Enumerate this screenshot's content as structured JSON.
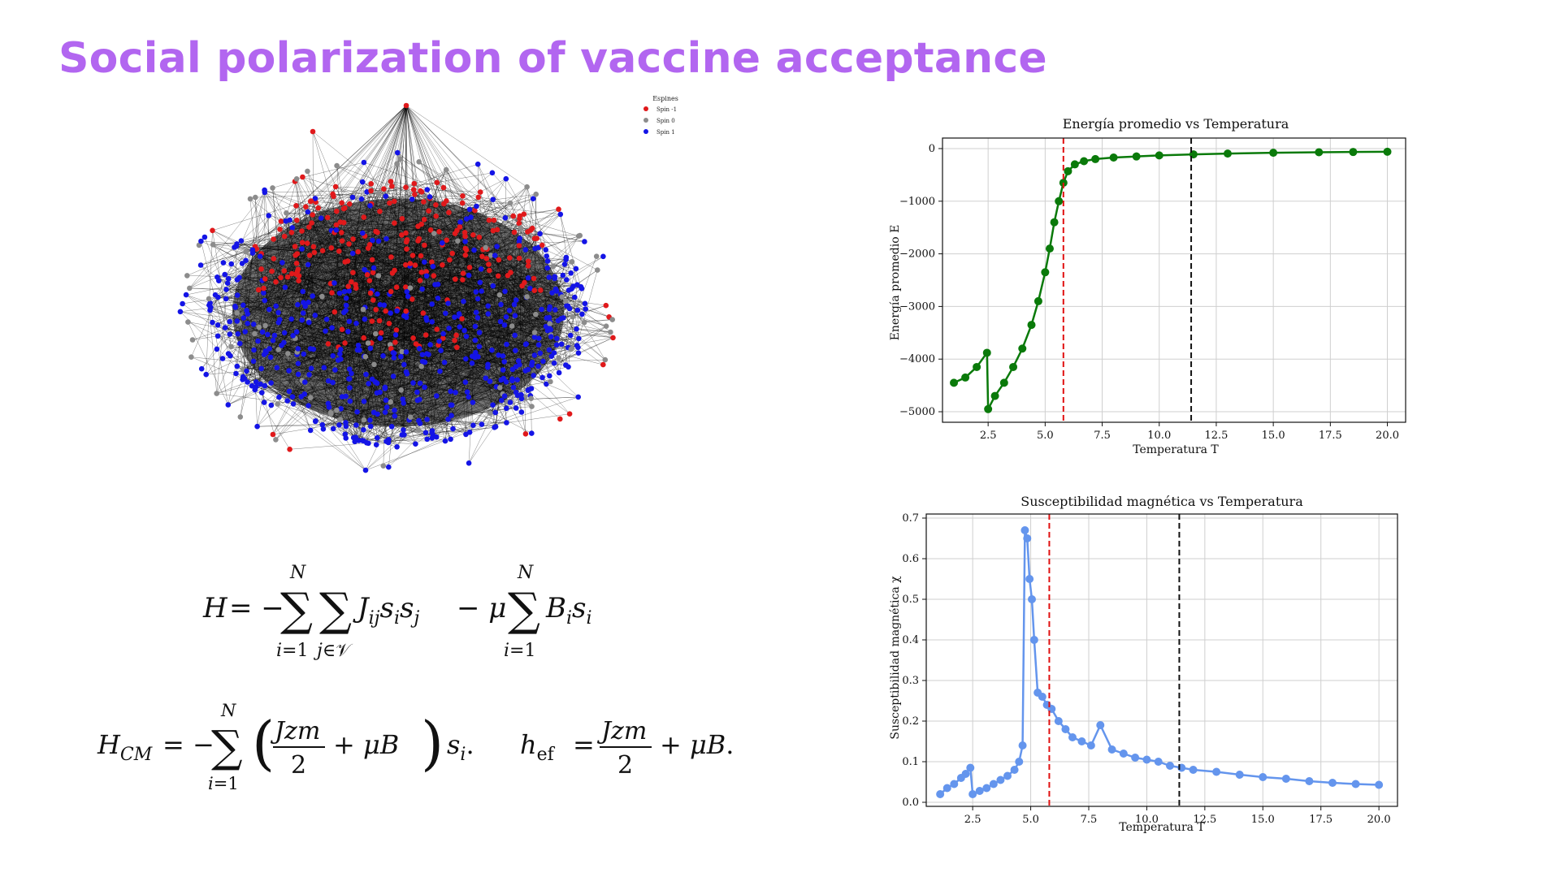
{
  "slide": {
    "title": "Social polarization of vaccine acceptance"
  },
  "network": {
    "legend": {
      "title": "Espines",
      "entries": [
        {
          "label": "Spin -1",
          "color": "#e0191b"
        },
        {
          "label": "Spin 0",
          "color": "#8c8c8c"
        },
        {
          "label": "Spin 1",
          "color": "#1414e6"
        }
      ]
    }
  },
  "chart_data": [
    {
      "type": "scatter",
      "title": "Energía promedio vs Temperatura",
      "xlabel": "Temperatura T",
      "ylabel": "Energía promedio E",
      "xlim": [
        0.5,
        20.8
      ],
      "ylim": [
        -5200,
        200
      ],
      "xticks": [
        2.5,
        5.0,
        7.5,
        10.0,
        12.5,
        15.0,
        17.5,
        20.0
      ],
      "xtick_labels": [
        "2.5",
        "5.0",
        "7.5",
        "10.0",
        "12.5",
        "15.0",
        "17.5",
        "20.0"
      ],
      "yticks": [
        0,
        -1000,
        -2000,
        -3000,
        -4000,
        -5000
      ],
      "ytick_labels": [
        "0",
        "−1000",
        "−2000",
        "−3000",
        "−4000",
        "−5000"
      ],
      "grid": true,
      "series": [
        {
          "color": "#0a7a0a",
          "x": [
            1.0,
            1.5,
            2.0,
            2.45,
            2.5,
            2.8,
            3.2,
            3.6,
            4.0,
            4.4,
            4.7,
            5.0,
            5.2,
            5.4,
            5.6,
            5.8,
            6.0,
            6.3,
            6.7,
            7.2,
            8.0,
            9.0,
            10.0,
            11.5,
            13.0,
            15.0,
            17.0,
            18.5,
            20.0
          ],
          "y": [
            -4450,
            -4350,
            -4150,
            -3880,
            -4950,
            -4700,
            -4450,
            -4150,
            -3800,
            -3350,
            -2900,
            -2350,
            -1900,
            -1400,
            -1000,
            -650,
            -430,
            -300,
            -240,
            -200,
            -170,
            -150,
            -130,
            -110,
            -95,
            -80,
            -70,
            -65,
            -60
          ]
        }
      ],
      "vlines": [
        {
          "x": 5.8,
          "color": "#e01010",
          "style": "dashed"
        },
        {
          "x": 11.4,
          "color": "#111111",
          "style": "dashed"
        }
      ]
    },
    {
      "type": "scatter",
      "title": "Susceptibilidad magnética vs Temperatura",
      "xlabel": "Temperatura T",
      "ylabel": "Susceptibilidad magnética χ",
      "xlim": [
        0.5,
        20.8
      ],
      "ylim": [
        -0.01,
        0.71
      ],
      "xticks": [
        2.5,
        5.0,
        7.5,
        10.0,
        12.5,
        15.0,
        17.5,
        20.0
      ],
      "xtick_labels": [
        "2.5",
        "5.0",
        "7.5",
        "10.0",
        "12.5",
        "15.0",
        "17.5",
        "20.0"
      ],
      "yticks": [
        0.0,
        0.1,
        0.2,
        0.3,
        0.4,
        0.5,
        0.6,
        0.7
      ],
      "ytick_labels": [
        "0.0",
        "0.1",
        "0.2",
        "0.3",
        "0.4",
        "0.5",
        "0.6",
        "0.7"
      ],
      "grid": true,
      "series": [
        {
          "color": "#6495ed",
          "x": [
            1.1,
            1.4,
            1.7,
            2.0,
            2.2,
            2.4,
            2.5,
            2.8,
            3.1,
            3.4,
            3.7,
            4.0,
            4.3,
            4.5,
            4.65,
            4.75,
            4.85,
            4.95,
            5.05,
            5.15,
            5.3,
            5.5,
            5.7,
            5.9,
            6.2,
            6.5,
            6.8,
            7.2,
            7.6,
            8.0,
            8.5,
            9.0,
            9.5,
            10.0,
            10.5,
            11.0,
            11.5,
            12.0,
            13.0,
            14.0,
            15.0,
            16.0,
            17.0,
            18.0,
            19.0,
            20.0
          ],
          "y": [
            0.02,
            0.035,
            0.045,
            0.06,
            0.07,
            0.085,
            0.02,
            0.028,
            0.035,
            0.045,
            0.055,
            0.065,
            0.08,
            0.1,
            0.14,
            0.67,
            0.65,
            0.55,
            0.5,
            0.4,
            0.27,
            0.26,
            0.24,
            0.23,
            0.2,
            0.18,
            0.16,
            0.15,
            0.14,
            0.19,
            0.13,
            0.12,
            0.11,
            0.105,
            0.1,
            0.09,
            0.085,
            0.08,
            0.075,
            0.068,
            0.062,
            0.058,
            0.052,
            0.048,
            0.045,
            0.043
          ]
        }
      ],
      "vlines": [
        {
          "x": 5.8,
          "color": "#e01010",
          "style": "dashed"
        },
        {
          "x": 11.4,
          "color": "#111111",
          "style": "dashed"
        }
      ]
    }
  ]
}
